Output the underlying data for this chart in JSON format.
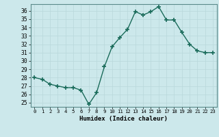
{
  "x": [
    0,
    1,
    2,
    3,
    4,
    5,
    6,
    7,
    8,
    9,
    10,
    11,
    12,
    13,
    14,
    15,
    16,
    17,
    18,
    19,
    20,
    21,
    22,
    23
  ],
  "y": [
    28.0,
    27.8,
    27.2,
    27.0,
    26.8,
    26.8,
    26.5,
    24.8,
    26.2,
    29.3,
    31.7,
    32.8,
    33.8,
    35.9,
    35.5,
    35.9,
    36.5,
    34.9,
    34.9,
    33.4,
    32.0,
    31.2,
    31.0,
    31.0
  ],
  "xlim": [
    -0.5,
    23.5
  ],
  "ylim": [
    24.5,
    36.8
  ],
  "yticks": [
    25,
    26,
    27,
    28,
    29,
    30,
    31,
    32,
    33,
    34,
    35,
    36
  ],
  "xticks": [
    0,
    1,
    2,
    3,
    4,
    5,
    6,
    7,
    8,
    9,
    10,
    11,
    12,
    13,
    14,
    15,
    16,
    17,
    18,
    19,
    20,
    21,
    22,
    23
  ],
  "xlabel": "Humidex (Indice chaleur)",
  "line_color": "#1a6b5a",
  "marker": "+",
  "bg_color": "#cce8eb",
  "grid_color": "#b8d8db",
  "spine_color": "#5a8a8a"
}
